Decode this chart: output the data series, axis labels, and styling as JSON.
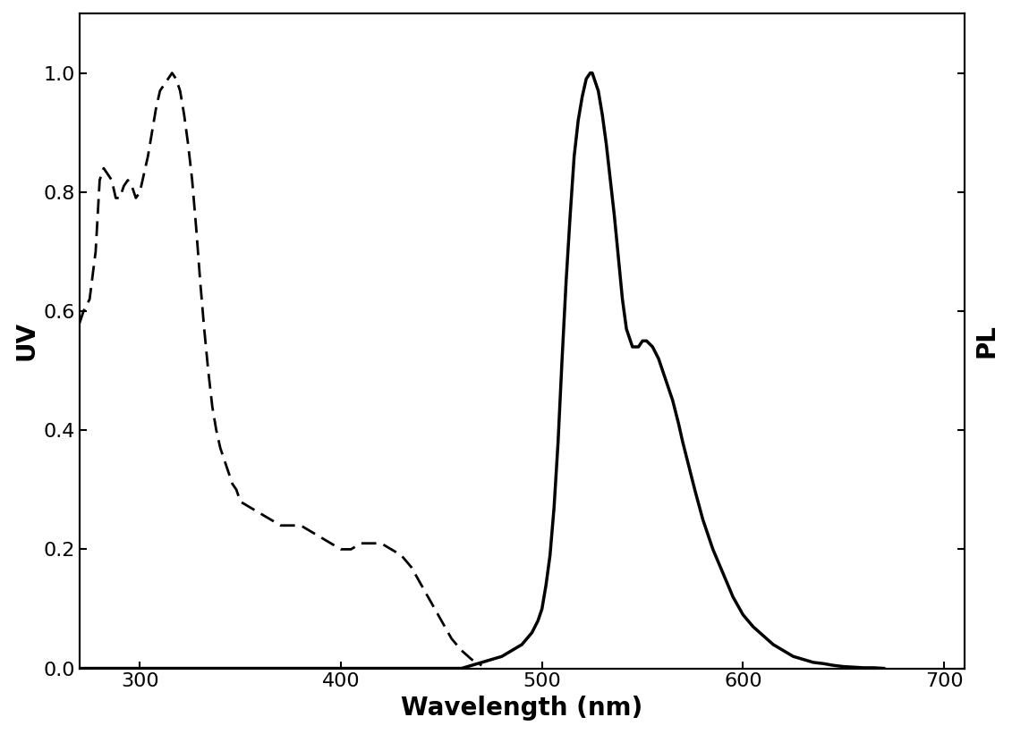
{
  "background_color": "#ffffff",
  "xlabel": "Wavelength (nm)",
  "ylabel_left": "UV",
  "ylabel_right": "PL",
  "xlim": [
    270,
    710
  ],
  "ylim": [
    0.0,
    1.1
  ],
  "xlabel_fontsize": 20,
  "ylabel_fontsize": 20,
  "tick_fontsize": 16,
  "uv_color": "#000000",
  "pl_color": "#000000",
  "uv_linewidth": 2.0,
  "pl_linewidth": 2.5,
  "uv_linestyle": "dashed",
  "pl_linestyle": "solid",
  "uv_x": [
    270,
    272,
    275,
    278,
    280,
    282,
    284,
    286,
    288,
    290,
    292,
    294,
    296,
    298,
    300,
    302,
    304,
    306,
    308,
    310,
    312,
    314,
    316,
    318,
    320,
    322,
    324,
    326,
    328,
    330,
    332,
    334,
    336,
    338,
    340,
    342,
    344,
    346,
    348,
    350,
    355,
    360,
    365,
    370,
    375,
    380,
    385,
    390,
    395,
    400,
    405,
    410,
    415,
    420,
    425,
    430,
    435,
    440,
    445,
    450,
    455,
    460,
    465,
    470
  ],
  "uv_y": [
    0.58,
    0.6,
    0.62,
    0.7,
    0.82,
    0.84,
    0.83,
    0.82,
    0.79,
    0.79,
    0.81,
    0.82,
    0.81,
    0.79,
    0.8,
    0.83,
    0.86,
    0.9,
    0.94,
    0.97,
    0.98,
    0.99,
    1.0,
    0.99,
    0.97,
    0.93,
    0.88,
    0.82,
    0.74,
    0.65,
    0.57,
    0.5,
    0.44,
    0.4,
    0.37,
    0.35,
    0.33,
    0.31,
    0.3,
    0.28,
    0.27,
    0.26,
    0.25,
    0.24,
    0.24,
    0.24,
    0.23,
    0.22,
    0.21,
    0.2,
    0.2,
    0.21,
    0.21,
    0.21,
    0.2,
    0.19,
    0.17,
    0.14,
    0.11,
    0.08,
    0.05,
    0.03,
    0.015,
    0.005
  ],
  "pl_x": [
    270,
    280,
    290,
    300,
    310,
    320,
    330,
    340,
    350,
    360,
    370,
    380,
    390,
    400,
    410,
    420,
    430,
    440,
    450,
    460,
    465,
    470,
    475,
    480,
    485,
    490,
    495,
    498,
    500,
    502,
    504,
    506,
    508,
    510,
    512,
    514,
    516,
    518,
    520,
    522,
    524,
    525,
    526,
    528,
    530,
    532,
    534,
    536,
    538,
    540,
    542,
    545,
    548,
    550,
    552,
    555,
    558,
    560,
    562,
    565,
    568,
    570,
    573,
    576,
    580,
    585,
    590,
    595,
    600,
    605,
    610,
    615,
    620,
    625,
    630,
    635,
    640,
    645,
    650,
    655,
    660,
    665,
    670
  ],
  "pl_y": [
    0.0,
    0.0,
    0.0,
    0.0,
    0.0,
    0.0,
    0.0,
    0.0,
    0.0,
    0.0,
    0.0,
    0.0,
    0.0,
    0.0,
    0.0,
    0.0,
    0.0,
    0.0,
    0.0,
    0.0,
    0.005,
    0.01,
    0.015,
    0.02,
    0.03,
    0.04,
    0.06,
    0.08,
    0.1,
    0.14,
    0.19,
    0.27,
    0.38,
    0.52,
    0.65,
    0.76,
    0.86,
    0.92,
    0.96,
    0.99,
    1.0,
    1.0,
    0.99,
    0.97,
    0.93,
    0.88,
    0.82,
    0.76,
    0.69,
    0.62,
    0.57,
    0.54,
    0.54,
    0.55,
    0.55,
    0.54,
    0.52,
    0.5,
    0.48,
    0.45,
    0.41,
    0.38,
    0.34,
    0.3,
    0.25,
    0.2,
    0.16,
    0.12,
    0.09,
    0.07,
    0.055,
    0.04,
    0.03,
    0.02,
    0.015,
    0.01,
    0.008,
    0.005,
    0.003,
    0.002,
    0.001,
    0.001,
    0.0
  ]
}
